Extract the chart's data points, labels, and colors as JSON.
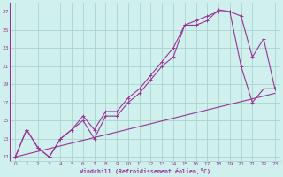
{
  "xlabel": "Windchill (Refroidissement éolien,°C)",
  "background_color": "#cff0ec",
  "grid_color": "#aad4ce",
  "line_color": "#993399",
  "xlim": [
    -0.5,
    23.5
  ],
  "ylim": [
    10.5,
    28.0
  ],
  "yticks": [
    11,
    13,
    15,
    17,
    19,
    21,
    23,
    25,
    27
  ],
  "xticks": [
    0,
    1,
    2,
    3,
    4,
    5,
    6,
    7,
    8,
    9,
    10,
    11,
    12,
    13,
    14,
    15,
    16,
    17,
    18,
    19,
    20,
    21,
    22,
    23
  ],
  "curve1_x": [
    0,
    1,
    2,
    3,
    4,
    5,
    6,
    7,
    8,
    9,
    10,
    11,
    12,
    13,
    14,
    15,
    16,
    17,
    18,
    19,
    20,
    21,
    22,
    23
  ],
  "curve1_y": [
    11,
    14,
    12,
    11,
    13,
    14,
    15,
    13,
    15.5,
    15.5,
    17,
    18,
    19.5,
    21,
    22,
    25.5,
    25.5,
    26,
    27.2,
    27,
    26.5,
    22,
    24,
    18.5
  ],
  "curve2_x": [
    0,
    1,
    2,
    3,
    4,
    5,
    6,
    7,
    8,
    9,
    10,
    11,
    12,
    13,
    14,
    15,
    16,
    17,
    18,
    19,
    20,
    21,
    22,
    23
  ],
  "curve2_y": [
    11,
    14,
    12,
    11,
    13,
    14,
    15.5,
    14,
    16,
    16,
    17.5,
    18.5,
    20,
    21.5,
    23,
    25.5,
    26,
    26.5,
    27,
    27,
    21,
    17,
    18.5,
    18.5
  ],
  "line_x": [
    0,
    23
  ],
  "line_y": [
    11,
    18
  ]
}
